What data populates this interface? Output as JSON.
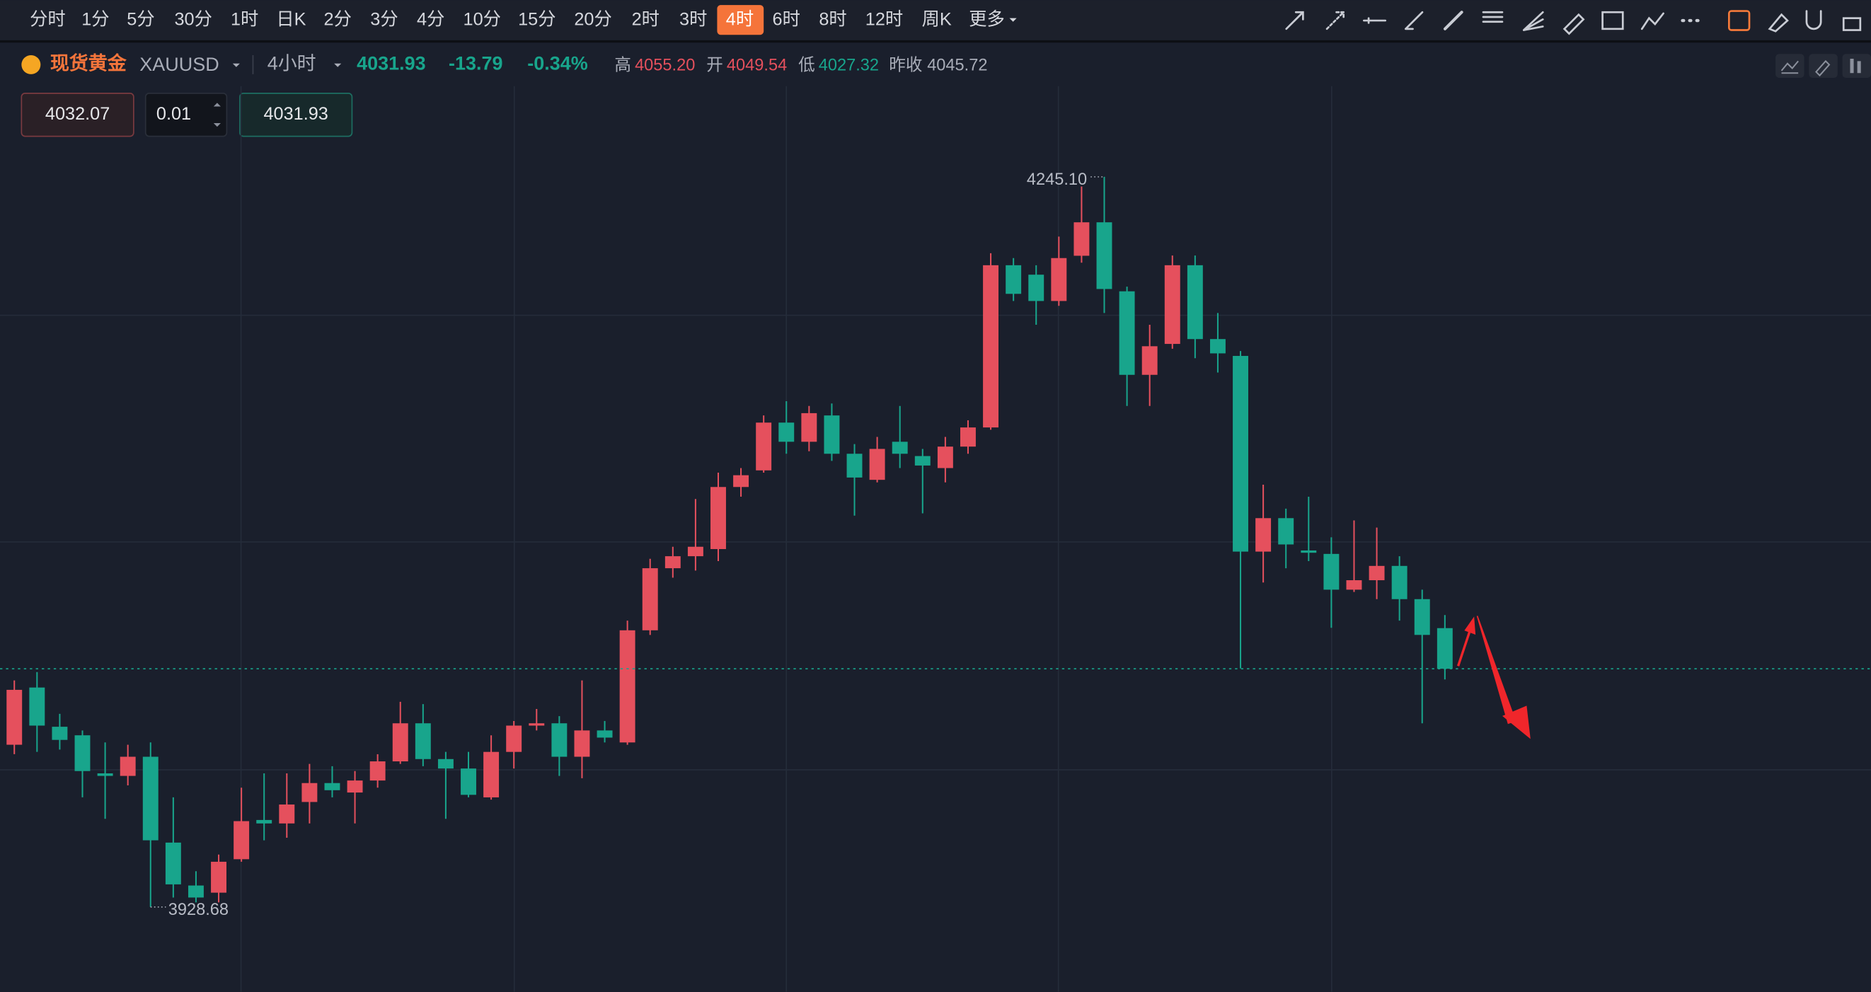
{
  "toolbar": {
    "intervals": [
      "分时",
      "1分",
      "5分",
      "30分",
      "1时",
      "日K",
      "2分",
      "3分",
      "4分",
      "10分",
      "15分",
      "20分",
      "2时",
      "3时",
      "4时",
      "6时",
      "8时",
      "12时",
      "周K",
      "更多"
    ],
    "active": "4时"
  },
  "header": {
    "symbol_name": "现货黄金",
    "symbol_code": "XAUUSD",
    "period": "4小时",
    "price": "4031.93",
    "change": "-13.79",
    "change_pct": "-0.34%",
    "stats": [
      {
        "label": "高",
        "value": "4055.20"
      },
      {
        "label": "开",
        "value": "4049.54"
      },
      {
        "label": "低",
        "value": "4027.32"
      },
      {
        "label": "昨收",
        "value": "4045.72"
      }
    ]
  },
  "order": {
    "sell_price": "4032.07",
    "quantity": "0.01",
    "buy_price": "4031.93"
  },
  "chart_data": {
    "type": "candlestick",
    "up_color": "#e5505d",
    "down_color": "#18a58c",
    "grid": true,
    "max_label": "4245.10",
    "min_label": "3928.68",
    "open": [
      3999.0,
      4023.8,
      4006.8,
      4003.1,
      3986.6,
      3985.5,
      3993.8,
      3956.6,
      3938.0,
      3934.9,
      3949.4,
      3966.4,
      3964.9,
      3974.2,
      3982.4,
      3978.3,
      3983.5,
      3991.8,
      4008.3,
      3992.8,
      3988.7,
      3976.2,
      3995.9,
      4007.3,
      4008.3,
      3993.8,
      4005.2,
      4000.0,
      4048.6,
      4075.5,
      4080.7,
      4083.8,
      4110.7,
      4117.9,
      4138.6,
      4130.3,
      4141.7,
      4125.1,
      4113.8,
      4130.3,
      4124.1,
      4118.9,
      4128.2,
      4136.5,
      4206.8,
      4202.7,
      4191.3,
      4210.9,
      4225.4,
      4195.5,
      4159.3,
      4172.7,
      4206.8,
      4174.8,
      4167.5,
      4082.7,
      4097.2,
      4083.2,
      4081.7,
      4066.2,
      4070.3,
      4076.5,
      4062.1,
      4049.54
    ],
    "high": [
      4026.9,
      4030.5,
      4012.4,
      4005.2,
      4000.0,
      3999.0,
      4000.0,
      3976.2,
      3944.2,
      3951.4,
      3980.4,
      3986.6,
      3986.6,
      3990.7,
      3989.7,
      3987.6,
      3994.9,
      4017.6,
      4016.6,
      3995.9,
      3995.9,
      4003.1,
      4009.3,
      4014.5,
      4011.4,
      4026.9,
      4009.3,
      4052.8,
      4079.6,
      4084.8,
      4105.5,
      4116.9,
      4118.9,
      4141.7,
      4147.9,
      4145.8,
      4146.9,
      4129.3,
      4132.4,
      4145.8,
      4127.2,
      4132.4,
      4139.6,
      4212.0,
      4209.9,
      4206.8,
      4219.2,
      4240.9,
      4245.1,
      4197.5,
      4181.0,
      4211.0,
      4211.0,
      4186.1,
      4169.6,
      4111.7,
      4101.3,
      4106.5,
      4088.9,
      4096.2,
      4093.1,
      4080.7,
      4066.2,
      4055.2
    ],
    "low": [
      3994.9,
      3995.9,
      3996.9,
      3976.2,
      3966.9,
      3981.4,
      3928.68,
      3932.8,
      3930.7,
      3930.7,
      3948.3,
      3957.6,
      3958.7,
      3964.9,
      3976.2,
      3964.9,
      3980.4,
      3990.7,
      3989.7,
      3966.9,
      3976.2,
      3975.2,
      3988.7,
      4005.2,
      3985.5,
      3984.5,
      4000.0,
      3999.0,
      4046.6,
      4071.4,
      4074.5,
      4078.6,
      4106.5,
      4116.9,
      4125.1,
      4126.2,
      4122.0,
      4098.3,
      4112.7,
      4118.9,
      4099.3,
      4112.7,
      4125.1,
      4135.5,
      4191.3,
      4181.0,
      4189.2,
      4207.9,
      4186.1,
      4145.8,
      4145.8,
      4170.6,
      4166.5,
      4160.3,
      4032.1,
      4069.3,
      4075.5,
      4078.6,
      4049.7,
      4065.2,
      4062.1,
      4052.8,
      4008.3,
      4027.32
    ],
    "close": [
      4022.8,
      4007.3,
      4001.1,
      3987.6,
      3985.5,
      3993.8,
      3957.6,
      3938.5,
      3932.8,
      3948.3,
      3965.9,
      3964.9,
      3973.1,
      3982.4,
      3979.3,
      3983.5,
      3991.8,
      4008.3,
      3992.8,
      3988.7,
      3977.3,
      3995.9,
      4007.3,
      4008.3,
      3993.8,
      4005.2,
      4002.1,
      4048.6,
      4075.5,
      4080.7,
      4084.8,
      4110.7,
      4115.8,
      4138.6,
      4130.3,
      4142.7,
      4125.1,
      4114.8,
      4127.2,
      4125.1,
      4120.0,
      4128.2,
      4136.5,
      4206.8,
      4194.4,
      4191.3,
      4209.9,
      4225.4,
      4196.5,
      4159.3,
      4171.7,
      4206.8,
      4174.8,
      4168.6,
      4082.7,
      4097.2,
      4085.8,
      4082.2,
      4066.2,
      4070.3,
      4076.5,
      4062.1,
      4046.6,
      4031.93
    ]
  }
}
